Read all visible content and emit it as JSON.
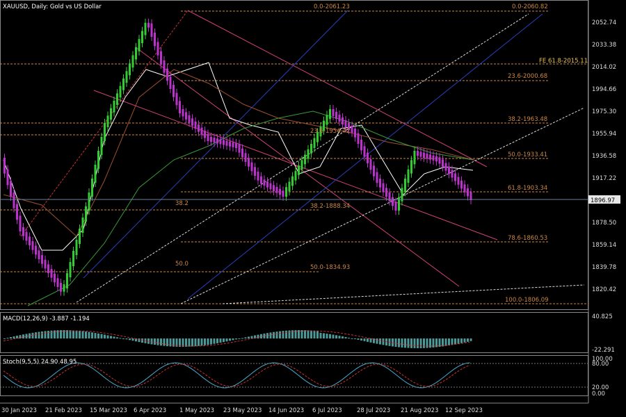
{
  "header": {
    "symbol_title": "XAUUSD, Daily:  Gold vs US Dollar"
  },
  "fib_labels": {
    "top_left": "0.0-2061.23",
    "top_right": "0.0-2060.82",
    "fe": "FE 61.8-2015.11",
    "f236": "23.6-2000.68",
    "f382": "38.2-1963.48",
    "f236b": "23.6-1954.42",
    "f500": "50.0-1933.41",
    "f618": "61.8-1903.34",
    "f382b": "38.2-1888.34",
    "f382c": "38.2",
    "f786": "78.6-1860.53",
    "f500b": "50.0",
    "f500c": "50.0-1834.93",
    "f1000": "100.0-1806.09"
  },
  "price_axis": [
    "2052.74",
    "2033.38",
    "2014.02",
    "1994.66",
    "1975.30",
    "1955.94",
    "1936.58",
    "1917.22",
    "1878.50",
    "1859.14",
    "1839.78",
    "1820.42"
  ],
  "current_price": "1896.97",
  "macd": {
    "label": "MACD(12,26,9) -3.887 -1.194",
    "axis_top": "40.825",
    "axis_bottom": "-22.291"
  },
  "stoch": {
    "label": "Stoch(9,5,5) 24.90 48.95",
    "levels": [
      "100.00",
      "80.00",
      "20.00",
      "0.00"
    ]
  },
  "time_axis": [
    "30 Jan 2023",
    "21 Feb 2023",
    "15 Mar 2023",
    "6 Apr 2023",
    "1 May 2023",
    "23 May 2023",
    "14 Jun 2023",
    "6 Jul 2023",
    "28 Jul 2023",
    "21 Aug 2023",
    "12 Sep 2023"
  ],
  "colors": {
    "background": "#000000",
    "bull_candle": "#33cc33",
    "bear_candle": "#bb33cc",
    "fib_level": "#cc8844",
    "channel_line": "#d0407a",
    "price_line_bg": "#ffffff"
  }
}
